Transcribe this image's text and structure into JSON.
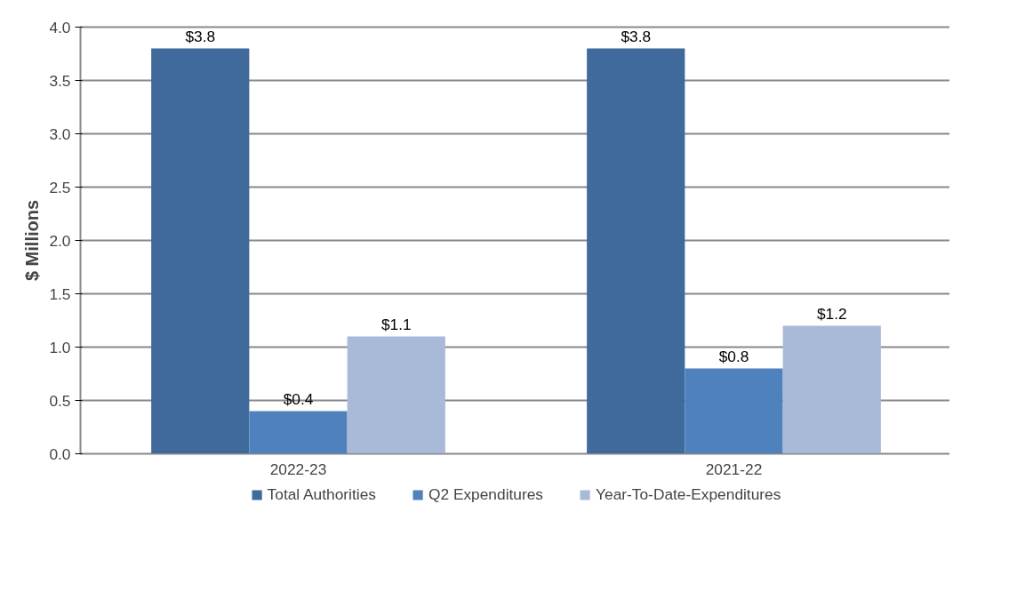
{
  "chart_data": {
    "type": "bar",
    "ylabel": "$ Millions",
    "categories": [
      "2022-23",
      "2021-22"
    ],
    "series": [
      {
        "name": "Total Authorities",
        "color": "#3f6a9b",
        "values": [
          3.8,
          3.8
        ],
        "value_labels": [
          "$3.8",
          "$3.8"
        ]
      },
      {
        "name": "Q2 Expenditures",
        "color": "#4f81bd",
        "values": [
          0.4,
          0.8
        ],
        "value_labels": [
          "$0.4",
          "$0.8"
        ]
      },
      {
        "name": "Year-To-Date-Expenditures",
        "color": "#a9bad9",
        "values": [
          1.1,
          1.2
        ],
        "value_labels": [
          "$1.1",
          "$1.2"
        ]
      }
    ],
    "ylim": [
      0,
      4
    ],
    "yticks": [
      {
        "value": 0,
        "label": "0.0"
      },
      {
        "value": 0.5,
        "label": "0.5"
      },
      {
        "value": 1,
        "label": "1.0"
      },
      {
        "value": 1.5,
        "label": "1.5"
      },
      {
        "value": 2,
        "label": "2.0"
      },
      {
        "value": 2.5,
        "label": "2.5"
      },
      {
        "value": 3,
        "label": "3.0"
      },
      {
        "value": 3.5,
        "label": "3.5"
      },
      {
        "value": 4,
        "label": "4.0"
      }
    ],
    "grid": "y",
    "legend": "bottom"
  }
}
